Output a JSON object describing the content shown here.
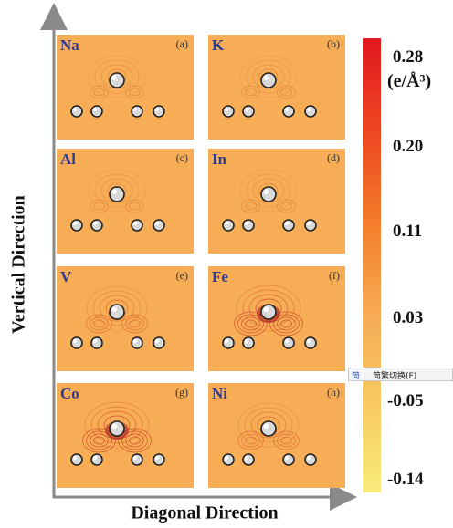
{
  "axes": {
    "vertical_label": "Vertical  Direction",
    "horizontal_label": "Diagonal Direction"
  },
  "panels": [
    {
      "element": "Na",
      "tag": "(a)"
    },
    {
      "element": "K",
      "tag": "(b)"
    },
    {
      "element": "Al",
      "tag": "(c)"
    },
    {
      "element": "In",
      "tag": "(d)"
    },
    {
      "element": "V",
      "tag": "(e)"
    },
    {
      "element": "Fe",
      "tag": "(f)"
    },
    {
      "element": "Co",
      "tag": "(g)"
    },
    {
      "element": "Ni",
      "tag": "(h)"
    }
  ],
  "colorbar": {
    "unit": "(e/Å³)",
    "ticks": [
      "0.28",
      "0.20",
      "0.11",
      "0.03",
      "-0.05",
      "-0.14"
    ],
    "colors": {
      "max": "#e2191f",
      "mid": "#f6ad56",
      "min": "#f8ec7c"
    }
  },
  "ime_popup": {
    "icon": "简",
    "text": "简繁切换(F)"
  }
}
